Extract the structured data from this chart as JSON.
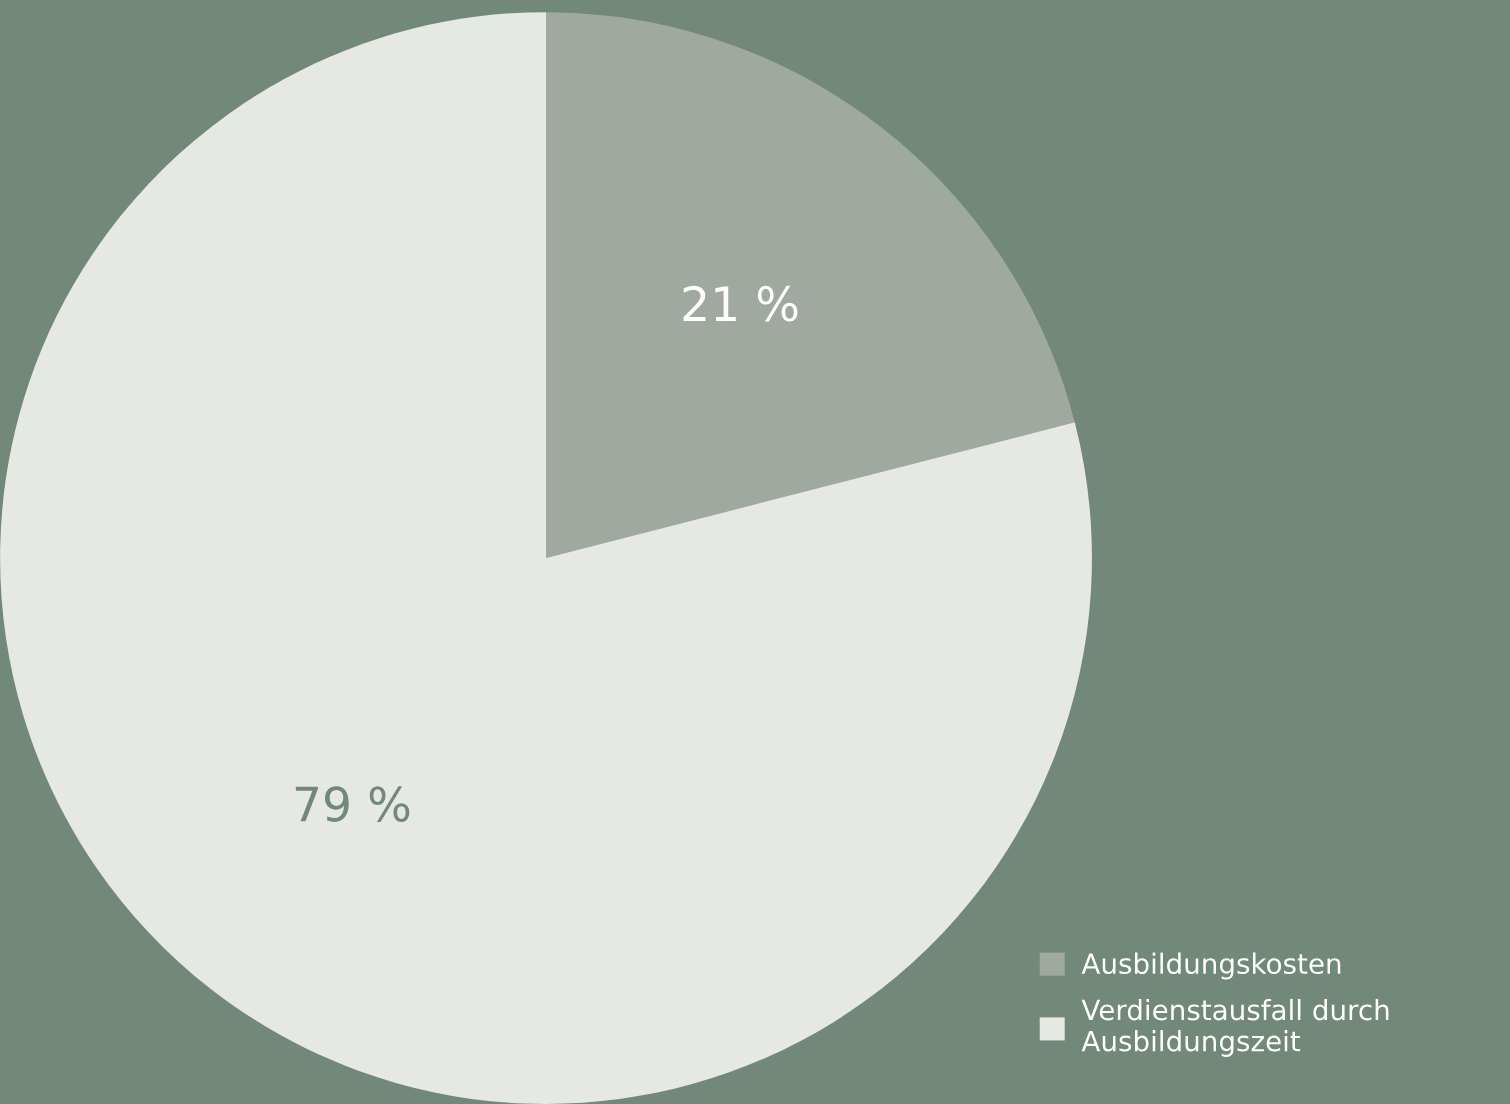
{
  "chart_data": {
    "type": "pie",
    "categories": [
      "Ausbildungskosten",
      "Verdienstausfall durch\nAusbildungszeit"
    ],
    "values": [
      21,
      79
    ],
    "colors": [
      "#a0a9a0",
      "#e6e8e4"
    ],
    "value_labels": [
      "21 %",
      "79 %"
    ],
    "legend": "bottom right"
  }
}
